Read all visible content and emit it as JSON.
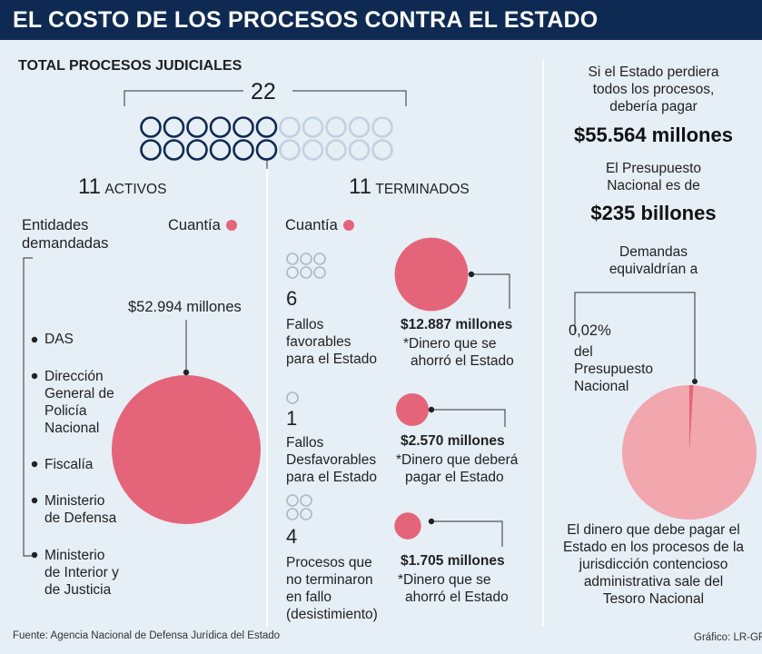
{
  "title": "EL COSTO DE LOS PROCESOS CONTRA EL ESTADO",
  "total_heading": "TOTAL PROCESOS JUDICIALES",
  "total_count": "22",
  "activos": {
    "number": "11",
    "label": "ACTIVOS"
  },
  "terminados": {
    "number": "11",
    "label": "TERMINADOS"
  },
  "entidades_label": [
    "Entidades",
    "demandadas"
  ],
  "cuantia_label": "Cuantía",
  "active_amount": "$52.994 millones",
  "entities": [
    [
      "DAS"
    ],
    [
      "Dirección",
      "General de",
      "Policía",
      "Nacional"
    ],
    [
      "Fiscalía"
    ],
    [
      "Ministerio",
      "de Defensa"
    ],
    [
      "Ministerio",
      "de Interior y",
      "de Justicia"
    ]
  ],
  "outcomes": [
    {
      "count": "6",
      "desc": [
        "Fallos",
        "favorables",
        "para el Estado"
      ],
      "amount": "$12.887 millones",
      "note": [
        "*Dinero que se",
        "ahorró el Estado"
      ]
    },
    {
      "count": "1",
      "desc": [
        "Fallos",
        "Desfavorables",
        "para el Estado"
      ],
      "amount": "$2.570 millones",
      "note": [
        "*Dinero que deberá",
        "pagar el Estado"
      ]
    },
    {
      "count": "4",
      "desc": [
        "Procesos que",
        "no terminaron",
        "en fallo",
        "(desistimiento)"
      ],
      "amount": "$1.705 millones",
      "note": [
        "*Dinero que se",
        "ahorró el Estado"
      ]
    }
  ],
  "right": {
    "intro": [
      "Si el Estado perdiera",
      "todos los procesos,",
      "debería pagar"
    ],
    "total_pay": "$55.564 millones",
    "budget_intro": [
      "El Presupuesto",
      "Nacional es de"
    ],
    "budget": "$235 billones",
    "equiv": [
      "Demandas",
      "equivaldrían a"
    ],
    "pct": "0,02%",
    "pct_desc": [
      "del",
      "Presupuesto",
      "Nacional"
    ],
    "footer": [
      "El dinero que debe pagar el",
      "Estado en los procesos de la",
      "jurisdicción contencioso",
      "administrativa sale del",
      "Tesoro Nacional"
    ]
  },
  "source": "Fuente: Agencia Nacional de Defensa Jurídica del Estado",
  "credit": "Gráfico: LR-GR",
  "colors": {
    "navy": "#0f2a52",
    "pink": "#e4657a",
    "pink_light": "#f2a6ae",
    "ring_light": "#c3d1df",
    "background": "#e6eef6"
  },
  "chart_data": {
    "type": "bubble",
    "unit": "millones",
    "title": "EL COSTO DE LOS PROCESOS CONTRA EL ESTADO",
    "bubbles": [
      {
        "label": "Activos",
        "value": 52994
      },
      {
        "label": "Fallos favorables para el Estado",
        "value": 12887
      },
      {
        "label": "Fallos Desfavorables para el Estado",
        "value": 2570
      },
      {
        "label": "Procesos que no terminaron en fallo (desistimiento)",
        "value": 1705
      }
    ],
    "process_counts": {
      "total": 22,
      "activos": 11,
      "terminados": 11,
      "favorables": 6,
      "desfavorables": 1,
      "desistimiento": 4
    },
    "pie": {
      "label": "Presupuesto Nacional",
      "share_percent": 0.02
    }
  }
}
